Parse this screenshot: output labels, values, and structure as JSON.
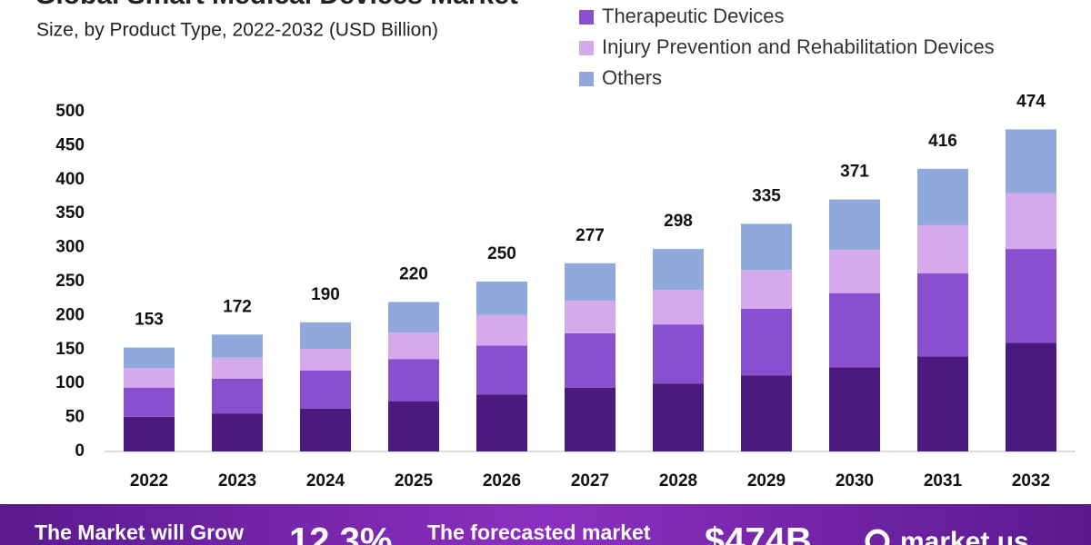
{
  "chart_data": {
    "type": "stacked_bar",
    "title": "Global Smart Medical Devices Market",
    "subtitle": "Size, by Product Type, 2022-2032 (USD Billion)",
    "categories": [
      "2022",
      "2023",
      "2024",
      "2025",
      "2026",
      "2027",
      "2028",
      "2029",
      "2030",
      "2031",
      "2032"
    ],
    "series": [
      {
        "name": null,
        "color": "#4b1a7f",
        "values": [
          51,
          56,
          63,
          74,
          84,
          94,
          100,
          112,
          124,
          140,
          160
        ]
      },
      {
        "name": "Therapeutic Devices",
        "color": "#8a4fcf",
        "values": [
          43,
          51,
          56,
          62,
          72,
          80,
          87,
          98,
          109,
          122,
          138
        ]
      },
      {
        "name": "Injury Prevention and Rehabilitation Devices",
        "color": "#d4aaed",
        "values": [
          28,
          31,
          32,
          39,
          45,
          48,
          51,
          57,
          64,
          71,
          82
        ]
      },
      {
        "name": "Others",
        "color": "#90a8dc",
        "values": [
          31,
          34,
          39,
          45,
          49,
          55,
          60,
          68,
          74,
          83,
          94
        ]
      }
    ],
    "totals": [
      153,
      172,
      190,
      220,
      250,
      277,
      298,
      335,
      371,
      416,
      474
    ],
    "ylim": [
      0,
      500
    ],
    "yticks": [
      0,
      50,
      100,
      150,
      200,
      250,
      300,
      350,
      400,
      450,
      500
    ],
    "grid": false
  },
  "footer": {
    "grow_text": "The Market will Grow",
    "cagr": "12.3%",
    "forecast_text": "The forecasted market",
    "forecast_value": "$474B",
    "brand": "market.us"
  }
}
